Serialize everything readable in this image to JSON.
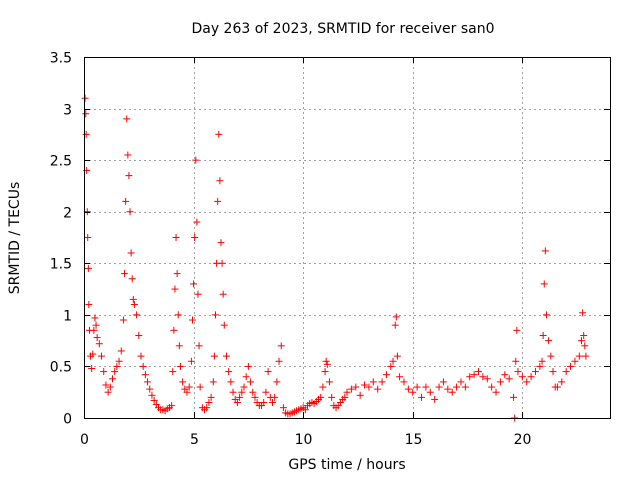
{
  "chart_data": {
    "type": "scatter",
    "title": "Day 263 of 2023, SRMTID for receiver san0",
    "xlabel": "GPS time / hours",
    "ylabel": "SRMTID / TECUs",
    "xlim": [
      0,
      24
    ],
    "ylim": [
      0,
      3.5
    ],
    "xticks": [
      "0",
      "5",
      "10",
      "15",
      "20"
    ],
    "xtick_values": [
      0,
      5,
      10,
      15,
      20
    ],
    "yticks": [
      "0",
      "0.5",
      "1",
      "1.5",
      "2",
      "2.5",
      "3",
      "3.5"
    ],
    "ytick_values": [
      0,
      0.5,
      1,
      1.5,
      2,
      2.5,
      3,
      3.5
    ],
    "grid": true,
    "marker": "+",
    "series": [
      {
        "name": "san0",
        "color": "#ff0000",
        "points": [
          [
            0.05,
            3.1
          ],
          [
            0.08,
            2.95
          ],
          [
            0.1,
            2.75
          ],
          [
            0.12,
            2.4
          ],
          [
            0.15,
            2.0
          ],
          [
            0.17,
            1.75
          ],
          [
            0.2,
            1.45
          ],
          [
            0.22,
            1.1
          ],
          [
            0.25,
            0.85
          ],
          [
            0.3,
            0.6
          ],
          [
            0.35,
            0.48
          ],
          [
            0.4,
            0.62
          ],
          [
            0.45,
            0.85
          ],
          [
            0.5,
            0.97
          ],
          [
            0.55,
            0.9
          ],
          [
            0.6,
            0.78
          ],
          [
            0.7,
            0.72
          ],
          [
            0.8,
            0.6
          ],
          [
            0.9,
            0.45
          ],
          [
            1.0,
            0.32
          ],
          [
            1.1,
            0.25
          ],
          [
            1.2,
            0.3
          ],
          [
            1.3,
            0.38
          ],
          [
            1.4,
            0.45
          ],
          [
            1.5,
            0.5
          ],
          [
            1.6,
            0.55
          ],
          [
            1.7,
            0.65
          ],
          [
            1.8,
            0.95
          ],
          [
            1.85,
            1.4
          ],
          [
            1.9,
            2.1
          ],
          [
            1.95,
            2.9
          ],
          [
            2.0,
            2.55
          ],
          [
            2.05,
            2.35
          ],
          [
            2.1,
            2.0
          ],
          [
            2.15,
            1.6
          ],
          [
            2.2,
            1.35
          ],
          [
            2.25,
            1.15
          ],
          [
            2.3,
            1.1
          ],
          [
            2.4,
            1.0
          ],
          [
            2.5,
            0.8
          ],
          [
            2.6,
            0.6
          ],
          [
            2.7,
            0.5
          ],
          [
            2.8,
            0.42
          ],
          [
            2.9,
            0.35
          ],
          [
            3.0,
            0.28
          ],
          [
            3.1,
            0.22
          ],
          [
            3.2,
            0.17
          ],
          [
            3.3,
            0.13
          ],
          [
            3.4,
            0.1
          ],
          [
            3.5,
            0.08
          ],
          [
            3.6,
            0.08
          ],
          [
            3.7,
            0.07
          ],
          [
            3.8,
            0.09
          ],
          [
            3.9,
            0.1
          ],
          [
            4.0,
            0.12
          ],
          [
            4.05,
            0.45
          ],
          [
            4.1,
            0.85
          ],
          [
            4.15,
            1.25
          ],
          [
            4.2,
            1.75
          ],
          [
            4.25,
            1.4
          ],
          [
            4.3,
            1.0
          ],
          [
            4.35,
            0.7
          ],
          [
            4.4,
            0.5
          ],
          [
            4.5,
            0.35
          ],
          [
            4.6,
            0.28
          ],
          [
            4.7,
            0.25
          ],
          [
            4.8,
            0.3
          ],
          [
            4.9,
            0.55
          ],
          [
            4.95,
            0.95
          ],
          [
            5.0,
            1.3
          ],
          [
            5.05,
            1.75
          ],
          [
            5.1,
            2.5
          ],
          [
            5.15,
            1.9
          ],
          [
            5.2,
            1.2
          ],
          [
            5.25,
            0.7
          ],
          [
            5.3,
            0.3
          ],
          [
            5.4,
            0.1
          ],
          [
            5.5,
            0.08
          ],
          [
            5.6,
            0.1
          ],
          [
            5.7,
            0.15
          ],
          [
            5.8,
            0.2
          ],
          [
            5.9,
            0.35
          ],
          [
            5.95,
            0.6
          ],
          [
            6.0,
            1.0
          ],
          [
            6.05,
            1.5
          ],
          [
            6.1,
            2.1
          ],
          [
            6.15,
            2.75
          ],
          [
            6.2,
            2.3
          ],
          [
            6.25,
            1.7
          ],
          [
            6.3,
            1.5
          ],
          [
            6.35,
            1.2
          ],
          [
            6.4,
            0.9
          ],
          [
            6.5,
            0.6
          ],
          [
            6.6,
            0.45
          ],
          [
            6.7,
            0.35
          ],
          [
            6.8,
            0.25
          ],
          [
            6.9,
            0.18
          ],
          [
            7.0,
            0.15
          ],
          [
            7.1,
            0.2
          ],
          [
            7.2,
            0.25
          ],
          [
            7.3,
            0.3
          ],
          [
            7.4,
            0.4
          ],
          [
            7.5,
            0.5
          ],
          [
            7.6,
            0.35
          ],
          [
            7.7,
            0.25
          ],
          [
            7.8,
            0.2
          ],
          [
            7.9,
            0.15
          ],
          [
            8.0,
            0.12
          ],
          [
            8.1,
            0.12
          ],
          [
            8.2,
            0.15
          ],
          [
            8.3,
            0.25
          ],
          [
            8.4,
            0.45
          ],
          [
            8.5,
            0.2
          ],
          [
            8.6,
            0.15
          ],
          [
            8.7,
            0.2
          ],
          [
            8.8,
            0.35
          ],
          [
            8.9,
            0.55
          ],
          [
            9.0,
            0.7
          ],
          [
            9.1,
            0.1
          ],
          [
            9.2,
            0.05
          ],
          [
            9.3,
            0.04
          ],
          [
            9.4,
            0.04
          ],
          [
            9.5,
            0.05
          ],
          [
            9.6,
            0.06
          ],
          [
            9.7,
            0.07
          ],
          [
            9.8,
            0.08
          ],
          [
            9.9,
            0.09
          ],
          [
            10.0,
            0.1
          ],
          [
            10.1,
            0.08
          ],
          [
            10.2,
            0.12
          ],
          [
            10.3,
            0.14
          ],
          [
            10.4,
            0.15
          ],
          [
            10.5,
            0.14
          ],
          [
            10.6,
            0.16
          ],
          [
            10.7,
            0.18
          ],
          [
            10.8,
            0.2
          ],
          [
            10.9,
            0.3
          ],
          [
            11.0,
            0.45
          ],
          [
            11.05,
            0.55
          ],
          [
            11.1,
            0.52
          ],
          [
            11.2,
            0.35
          ],
          [
            11.3,
            0.2
          ],
          [
            11.4,
            0.12
          ],
          [
            11.5,
            0.1
          ],
          [
            11.6,
            0.12
          ],
          [
            11.7,
            0.15
          ],
          [
            11.8,
            0.18
          ],
          [
            11.9,
            0.2
          ],
          [
            12.0,
            0.25
          ],
          [
            12.2,
            0.28
          ],
          [
            12.4,
            0.3
          ],
          [
            12.6,
            0.22
          ],
          [
            12.8,
            0.32
          ],
          [
            13.0,
            0.3
          ],
          [
            13.2,
            0.35
          ],
          [
            13.4,
            0.28
          ],
          [
            13.6,
            0.35
          ],
          [
            13.8,
            0.42
          ],
          [
            14.0,
            0.5
          ],
          [
            14.1,
            0.55
          ],
          [
            14.2,
            0.9
          ],
          [
            14.25,
            0.98
          ],
          [
            14.3,
            0.6
          ],
          [
            14.4,
            0.4
          ],
          [
            14.6,
            0.35
          ],
          [
            14.8,
            0.28
          ],
          [
            15.0,
            0.25
          ],
          [
            15.2,
            0.3
          ],
          [
            15.4,
            0.2
          ],
          [
            15.6,
            0.3
          ],
          [
            15.8,
            0.25
          ],
          [
            16.0,
            0.18
          ],
          [
            16.2,
            0.3
          ],
          [
            16.4,
            0.35
          ],
          [
            16.6,
            0.28
          ],
          [
            16.8,
            0.25
          ],
          [
            17.0,
            0.3
          ],
          [
            17.2,
            0.35
          ],
          [
            17.4,
            0.3
          ],
          [
            17.6,
            0.4
          ],
          [
            17.8,
            0.42
          ],
          [
            18.0,
            0.45
          ],
          [
            18.2,
            0.4
          ],
          [
            18.4,
            0.38
          ],
          [
            18.6,
            0.3
          ],
          [
            18.8,
            0.25
          ],
          [
            19.0,
            0.35
          ],
          [
            19.2,
            0.42
          ],
          [
            19.4,
            0.38
          ],
          [
            19.6,
            0.2
          ],
          [
            19.65,
            0.0
          ],
          [
            19.7,
            0.55
          ],
          [
            19.75,
            0.85
          ],
          [
            19.8,
            0.45
          ],
          [
            20.0,
            0.4
          ],
          [
            20.2,
            0.35
          ],
          [
            20.4,
            0.4
          ],
          [
            20.6,
            0.45
          ],
          [
            20.8,
            0.5
          ],
          [
            20.9,
            0.55
          ],
          [
            20.95,
            0.8
          ],
          [
            21.0,
            1.3
          ],
          [
            21.05,
            1.62
          ],
          [
            21.1,
            1.0
          ],
          [
            21.2,
            0.75
          ],
          [
            21.3,
            0.6
          ],
          [
            21.4,
            0.45
          ],
          [
            21.5,
            0.3
          ],
          [
            21.6,
            0.3
          ],
          [
            21.8,
            0.35
          ],
          [
            22.0,
            0.45
          ],
          [
            22.2,
            0.5
          ],
          [
            22.4,
            0.55
          ],
          [
            22.6,
            0.6
          ],
          [
            22.7,
            0.75
          ],
          [
            22.75,
            1.02
          ],
          [
            22.8,
            0.8
          ],
          [
            22.85,
            0.7
          ],
          [
            22.9,
            0.6
          ]
        ]
      }
    ]
  }
}
